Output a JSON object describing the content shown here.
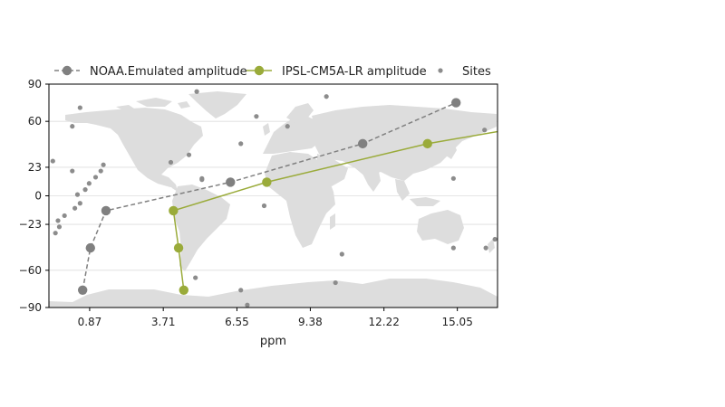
{
  "chart_data": {
    "type": "line",
    "title": "",
    "xlabel": "ppm",
    "ylabel": "",
    "xlim": [
      -0.7,
      16.6
    ],
    "ylim": [
      -90,
      90
    ],
    "x_ticks": [
      0.87,
      3.71,
      6.55,
      9.38,
      12.22,
      15.05
    ],
    "x_tick_labels": [
      "0.87",
      "3.71",
      "6.55",
      "9.38",
      "12.22",
      "15.05"
    ],
    "y_ticks": [
      90,
      60,
      23,
      0,
      -23,
      -60,
      -90
    ],
    "y_tick_labels": [
      "90",
      "60",
      "23",
      "0",
      "−23",
      "−60",
      "−90"
    ],
    "grid": "horizontal",
    "legend_placement": "top",
    "background": "world-map",
    "colors": {
      "noaa": "#808080",
      "ipsl": "#9aab3a",
      "sites": "#8c8c8c",
      "land": "#dddddd",
      "grid": "#dddddd"
    },
    "series": [
      {
        "name": "NOAA.Emulated amplitude",
        "style": "dashed",
        "x": [
          0.6,
          0.9,
          1.5,
          6.3,
          11.4,
          15.0
        ],
        "y": [
          -76,
          -42,
          -12,
          11,
          42,
          75
        ]
      },
      {
        "name": "IPSL-CM5A-LR amplitude",
        "style": "solid",
        "x": [
          4.5,
          4.3,
          4.1,
          7.7,
          13.9,
          17.5
        ],
        "y": [
          -76,
          -42,
          -12,
          11,
          42,
          55
        ]
      },
      {
        "name": "Sites",
        "style": "points",
        "x": [
          -0.55,
          -0.45,
          -0.35,
          -0.3,
          -0.1,
          0.2,
          0.3,
          0.4,
          0.5,
          0.7,
          0.85,
          1.1,
          1.3,
          1.4,
          0.5,
          0.2,
          4.0,
          4.7,
          4.95,
          5.0,
          5.2,
          5.2,
          6.7,
          6.7,
          6.95,
          7.3,
          7.6,
          8.5,
          10.0,
          10.35,
          10.6,
          14.9,
          14.9,
          15.2,
          16.1,
          16.15,
          16.5,
          16.6
        ],
        "y": [
          28,
          -30,
          -20,
          -25,
          -16,
          56,
          -10,
          1,
          -6,
          5,
          10,
          15,
          20,
          25,
          71,
          20,
          27,
          33,
          -66,
          84,
          13,
          14,
          42,
          -76,
          -88,
          64,
          -8,
          56,
          80,
          -70,
          -47,
          -42,
          14,
          100,
          53,
          -42,
          -35,
          101
        ]
      }
    ]
  }
}
